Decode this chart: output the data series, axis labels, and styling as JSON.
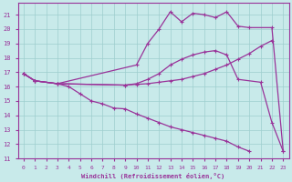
{
  "background_color": "#c8eaea",
  "grid_color": "#9ecece",
  "line_color": "#993399",
  "xlabel": "Windchill (Refroidissement éolien,°C)",
  "xlim": [
    -0.5,
    23.5
  ],
  "ylim": [
    11,
    21.8
  ],
  "yticks": [
    11,
    12,
    13,
    14,
    15,
    16,
    17,
    18,
    19,
    20,
    21
  ],
  "xticks": [
    0,
    1,
    2,
    3,
    4,
    5,
    6,
    7,
    8,
    9,
    10,
    11,
    12,
    13,
    14,
    15,
    16,
    17,
    18,
    19,
    20,
    21,
    22,
    23
  ],
  "series": [
    {
      "x": [
        0,
        1,
        3,
        10,
        11,
        12,
        13,
        14,
        15,
        16,
        17,
        18,
        19,
        20,
        22,
        23
      ],
      "y": [
        16.9,
        16.4,
        16.2,
        17.5,
        19.0,
        20.0,
        21.2,
        20.5,
        21.1,
        21.0,
        20.8,
        21.2,
        20.2,
        20.1,
        20.1,
        11.5
      ]
    },
    {
      "x": [
        0,
        1,
        3,
        9,
        10,
        11,
        12,
        13,
        14,
        15,
        16,
        17,
        18,
        19,
        21,
        22,
        23
      ],
      "y": [
        16.9,
        16.4,
        16.2,
        16.1,
        16.2,
        16.5,
        16.9,
        17.5,
        17.9,
        18.2,
        18.4,
        18.5,
        18.2,
        16.5,
        16.3,
        13.5,
        11.5
      ]
    },
    {
      "x": [
        0,
        1,
        3,
        9,
        10,
        11,
        12,
        13,
        14,
        15,
        16,
        17,
        18,
        19,
        20,
        21,
        22
      ],
      "y": [
        16.9,
        16.4,
        16.2,
        16.1,
        16.15,
        16.2,
        16.3,
        16.4,
        16.5,
        16.7,
        16.9,
        17.2,
        17.5,
        17.9,
        18.3,
        18.8,
        19.2
      ]
    },
    {
      "x": [
        0,
        1,
        3,
        4,
        5,
        6,
        7,
        8,
        9,
        10,
        11,
        12,
        13,
        14,
        15,
        16,
        17,
        18,
        19,
        20
      ],
      "y": [
        16.9,
        16.4,
        16.2,
        16.0,
        15.5,
        15.0,
        14.8,
        14.5,
        14.45,
        14.1,
        13.8,
        13.5,
        13.2,
        13.0,
        12.8,
        12.6,
        12.4,
        12.2,
        11.8,
        11.5
      ]
    }
  ]
}
